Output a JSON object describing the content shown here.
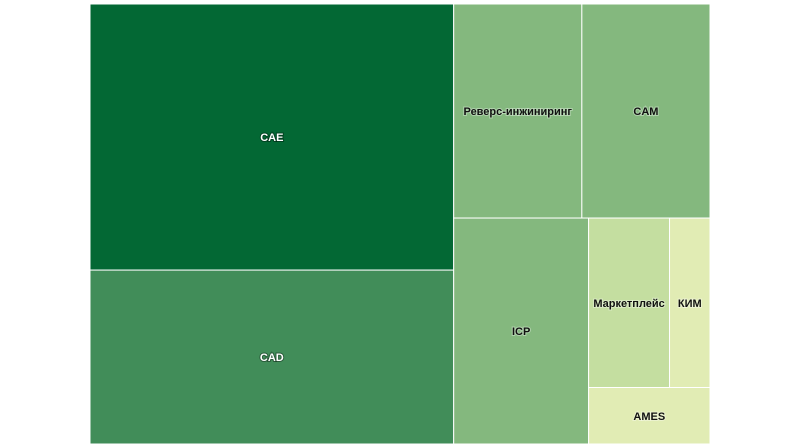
{
  "chart_data": {
    "type": "treemap",
    "title": "",
    "categories": [
      "CAE",
      "CAD",
      "Реверс-инжиниринг",
      "CAM",
      "ICP",
      "Маркетплейс",
      "КИМ",
      "AMES"
    ],
    "values": [
      127,
      83,
      36,
      36,
      40,
      18,
      9,
      9
    ],
    "colors": [
      "#036834",
      "#418d59",
      "#84b87e",
      "#84b87e",
      "#84b87e",
      "#c4dea0",
      "#e1ecb4",
      "#e1ecb4"
    ],
    "label_colors": [
      "#ffffff",
      "#ffffff",
      "#111111",
      "#111111",
      "#111111",
      "#111111",
      "#111111",
      "#111111"
    ],
    "label_halo": [
      "#000000",
      "#000000",
      "#ffffff",
      "#ffffff",
      "#ffffff",
      "#ffffff",
      "#ffffff",
      "#ffffff"
    ]
  }
}
